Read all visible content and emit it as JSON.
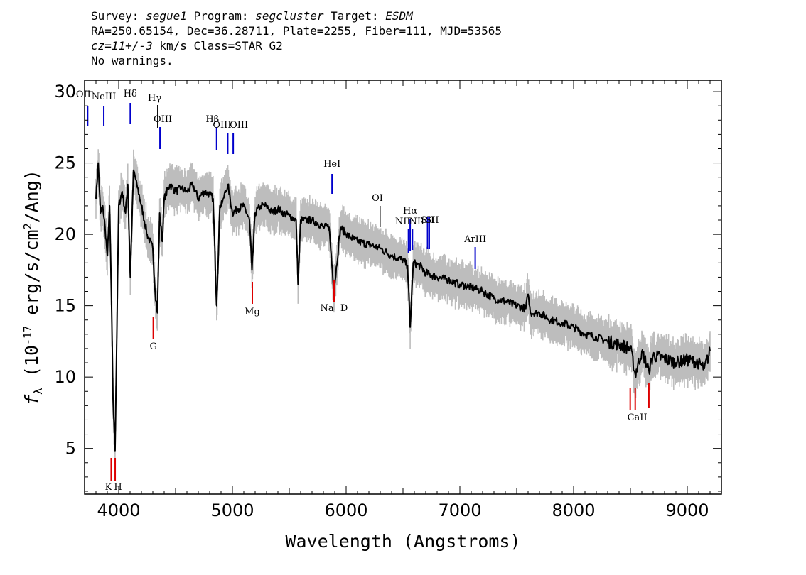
{
  "header": {
    "line1": {
      "survey_label": "Survey: ",
      "survey": "segue1",
      "program_label": " Program: ",
      "program": "segcluster",
      "target_label": " Target: ",
      "target": "ESDM"
    },
    "line2": "RA=250.65154, Dec=36.28711, Plate=2255, Fiber=111, MJD=53565",
    "line3": {
      "cz": "cz=11+/-3",
      "rest": " km/s Class=STAR G2"
    },
    "line4": "No warnings."
  },
  "colors": {
    "flux": "#000000",
    "error_band": "#bdbdbd",
    "emission": "#0000cc",
    "absorption": "#dd0000",
    "annotation": "#000000"
  },
  "chart_data": {
    "type": "line",
    "xlabel": "Wavelength (Angstroms)",
    "ylabel": "f_λ (10^-17 erg/s/cm²/Ang)",
    "xlim": [
      3700,
      9300
    ],
    "ylim": [
      1.8,
      30.8
    ],
    "x_ticks": [
      4000,
      5000,
      6000,
      7000,
      8000,
      9000
    ],
    "y_ticks": [
      5,
      10,
      15,
      20,
      25,
      30
    ],
    "grid": false,
    "series": [
      {
        "x": [
          3800,
          3820,
          3840,
          3860,
          3880,
          3900,
          3920,
          3935,
          3950,
          3968,
          3980,
          4000,
          4030,
          4060,
          4080,
          4102,
          4130,
          4160,
          4200,
          4250,
          4300,
          4320,
          4340,
          4360,
          4383,
          4400,
          4450,
          4500,
          4550,
          4600,
          4650,
          4700,
          4750,
          4800,
          4830,
          4861,
          4890,
          4920,
          4960,
          5000,
          5050,
          5100,
          5150,
          5172,
          5200,
          5250,
          5300,
          5350,
          5400,
          5450,
          5500,
          5560,
          5577,
          5600,
          5650,
          5700,
          5750,
          5800,
          5850,
          5893,
          5950,
          6000,
          6100,
          6200,
          6300,
          6400,
          6500,
          6540,
          6563,
          6590,
          6650,
          6700,
          6800,
          6900,
          7000,
          7100,
          7200,
          7300,
          7400,
          7500,
          7580,
          7600,
          7620,
          7700,
          7800,
          7900,
          8000,
          8100,
          8200,
          8300,
          8400,
          8500,
          8542,
          8600,
          8662,
          8700,
          8800,
          8900,
          9000,
          9100,
          9150,
          9200
        ],
        "y": [
          22.5,
          25.0,
          21.5,
          22.0,
          20.5,
          18.5,
          22.0,
          16.0,
          8.5,
          4.8,
          11.0,
          22.0,
          23.0,
          21.5,
          23.5,
          17.0,
          24.5,
          23.5,
          22.0,
          20.0,
          19.0,
          16.0,
          14.5,
          21.5,
          19.5,
          22.5,
          23.5,
          23.0,
          23.2,
          23.0,
          23.5,
          22.5,
          23.0,
          22.8,
          22.5,
          15.0,
          22.0,
          22.5,
          23.5,
          21.5,
          21.8,
          22.0,
          21.0,
          17.5,
          21.5,
          22.0,
          22.0,
          21.5,
          21.8,
          21.5,
          21.3,
          21.0,
          16.5,
          21.0,
          21.0,
          21.0,
          20.8,
          20.5,
          20.5,
          16.0,
          20.5,
          20.0,
          19.5,
          19.3,
          19.0,
          18.5,
          18.2,
          17.8,
          13.5,
          18.0,
          17.8,
          17.3,
          17.0,
          16.8,
          16.5,
          16.3,
          16.0,
          15.5,
          15.3,
          15.0,
          14.8,
          15.8,
          14.5,
          14.5,
          14.0,
          13.8,
          13.5,
          13.0,
          12.8,
          12.5,
          12.3,
          12.0,
          10.2,
          11.8,
          10.5,
          11.5,
          11.3,
          11.0,
          11.2,
          11.0,
          10.6,
          11.8
        ],
        "err": 0.9
      }
    ],
    "emission_lines": [
      {
        "label": "OII",
        "wave": 3727
      },
      {
        "label": "NeIII",
        "wave": 3869
      },
      {
        "label": "Hδ",
        "wave": 4102
      },
      {
        "label": "Hγ",
        "wave": 4341
      },
      {
        "label": "OIII",
        "wave": 4363
      },
      {
        "label": "Hβ",
        "wave": 4861
      },
      {
        "label": "OIII",
        "wave": 4959
      },
      {
        "label": "OIII",
        "wave": 5007
      },
      {
        "label": "HeI",
        "wave": 5876
      },
      {
        "label": "OI",
        "wave": 6300
      },
      {
        "label": "NII",
        "wave": 6548
      },
      {
        "label": "Hα",
        "wave": 6563
      },
      {
        "label": "NII",
        "wave": 6583
      },
      {
        "label": "SII",
        "wave": 6716
      },
      {
        "label": "SII",
        "wave": 6731
      },
      {
        "label": "ArIII",
        "wave": 7135
      }
    ],
    "absorption_lines": [
      {
        "label": "K",
        "wave": 3934
      },
      {
        "label": "H",
        "wave": 3969
      },
      {
        "label": "G",
        "wave": 4304
      },
      {
        "label": "Mg",
        "wave": 5175
      },
      {
        "label": "Na",
        "wave": 5894
      },
      {
        "label": "D",
        "wave": 5894
      },
      {
        "label": "CaII",
        "wave": 8498
      },
      {
        "label": "CaII",
        "wave": 8542
      },
      {
        "label": "CaII",
        "wave": 8662
      }
    ]
  }
}
